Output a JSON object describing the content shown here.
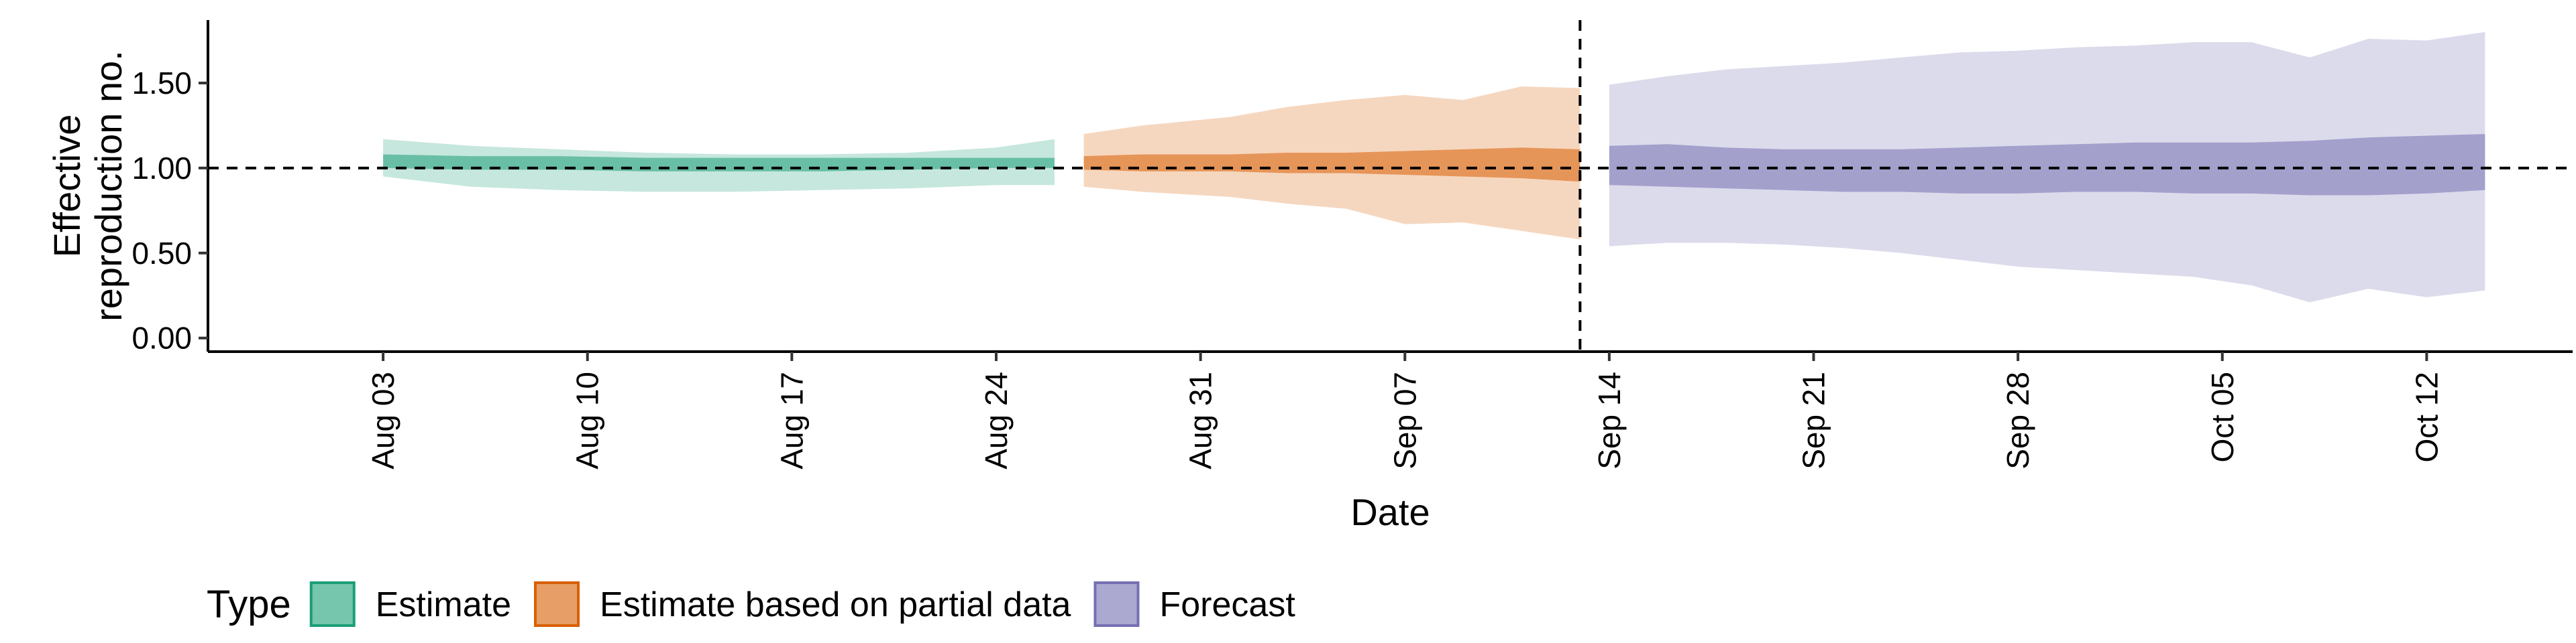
{
  "chart_data": {
    "type": "area",
    "xlabel": "Date",
    "ylabel_lines": [
      "Effective",
      "reproduction no."
    ],
    "y_ticks": [
      {
        "value": 0.0,
        "label": "0.00"
      },
      {
        "value": 0.5,
        "label": "0.50"
      },
      {
        "value": 1.0,
        "label": "1.00"
      },
      {
        "value": 1.5,
        "label": "1.50"
      }
    ],
    "ylim": [
      -0.08,
      1.87
    ],
    "xlim": [
      "2020-07-28",
      "2020-10-17"
    ],
    "x_ticks": [
      {
        "date": "2020-08-03",
        "label": "Aug 03"
      },
      {
        "date": "2020-08-10",
        "label": "Aug 10"
      },
      {
        "date": "2020-08-17",
        "label": "Aug 17"
      },
      {
        "date": "2020-08-24",
        "label": "Aug 24"
      },
      {
        "date": "2020-08-31",
        "label": "Aug 31"
      },
      {
        "date": "2020-09-07",
        "label": "Sep 07"
      },
      {
        "date": "2020-09-14",
        "label": "Sep 14"
      },
      {
        "date": "2020-09-21",
        "label": "Sep 21"
      },
      {
        "date": "2020-09-28",
        "label": "Sep 28"
      },
      {
        "date": "2020-10-05",
        "label": "Oct 05"
      },
      {
        "date": "2020-10-12",
        "label": "Oct 12"
      }
    ],
    "reference_line_y": 1.0,
    "forecast_date": "2020-09-13",
    "legend": {
      "title": "Type",
      "position": "bottom-left",
      "items": [
        {
          "series": "Estimate",
          "label": "Estimate"
        },
        {
          "series": "Estimate based on partial data",
          "label": "Estimate based on partial data"
        },
        {
          "series": "Forecast",
          "label": "Forecast"
        }
      ]
    },
    "series": [
      {
        "name": "Estimate",
        "color": "#1b9e77",
        "x": [
          "2020-08-03",
          "2020-08-06",
          "2020-08-09",
          "2020-08-12",
          "2020-08-15",
          "2020-08-18",
          "2020-08-21",
          "2020-08-24",
          "2020-08-26"
        ],
        "outer_upper": [
          1.17,
          1.13,
          1.11,
          1.09,
          1.08,
          1.08,
          1.09,
          1.12,
          1.17
        ],
        "outer_lower": [
          0.95,
          0.89,
          0.87,
          0.86,
          0.86,
          0.87,
          0.88,
          0.9,
          0.9
        ],
        "inner_upper": [
          1.08,
          1.07,
          1.07,
          1.06,
          1.06,
          1.06,
          1.06,
          1.06,
          1.06
        ],
        "inner_lower": [
          1.0,
          0.99,
          0.99,
          0.98,
          0.98,
          0.98,
          0.99,
          1.0,
          1.0
        ]
      },
      {
        "name": "Estimate based on partial data",
        "color": "#d95f02",
        "x": [
          "2020-08-27",
          "2020-08-29",
          "2020-09-01",
          "2020-09-03",
          "2020-09-05",
          "2020-09-07",
          "2020-09-09",
          "2020-09-11",
          "2020-09-13"
        ],
        "outer_upper": [
          1.2,
          1.25,
          1.3,
          1.36,
          1.4,
          1.43,
          1.4,
          1.48,
          1.47
        ],
        "outer_lower": [
          0.89,
          0.86,
          0.83,
          0.79,
          0.76,
          0.67,
          0.68,
          0.63,
          0.58
        ],
        "inner_upper": [
          1.07,
          1.08,
          1.08,
          1.09,
          1.09,
          1.1,
          1.11,
          1.12,
          1.11
        ],
        "inner_lower": [
          0.99,
          0.98,
          0.98,
          0.97,
          0.97,
          0.96,
          0.95,
          0.94,
          0.92
        ]
      },
      {
        "name": "Forecast",
        "color": "#7570b3",
        "x": [
          "2020-09-14",
          "2020-09-16",
          "2020-09-18",
          "2020-09-20",
          "2020-09-22",
          "2020-09-24",
          "2020-09-26",
          "2020-09-28",
          "2020-09-30",
          "2020-10-02",
          "2020-10-04",
          "2020-10-06",
          "2020-10-08",
          "2020-10-10",
          "2020-10-12",
          "2020-10-14"
        ],
        "outer_upper": [
          1.49,
          1.54,
          1.58,
          1.6,
          1.62,
          1.65,
          1.68,
          1.69,
          1.71,
          1.72,
          1.74,
          1.74,
          1.65,
          1.76,
          1.75,
          1.8
        ],
        "outer_lower": [
          0.54,
          0.56,
          0.56,
          0.55,
          0.53,
          0.5,
          0.46,
          0.42,
          0.4,
          0.38,
          0.36,
          0.31,
          0.21,
          0.29,
          0.24,
          0.28
        ],
        "inner_upper": [
          1.13,
          1.14,
          1.12,
          1.11,
          1.11,
          1.11,
          1.12,
          1.13,
          1.14,
          1.15,
          1.15,
          1.15,
          1.16,
          1.18,
          1.19,
          1.2
        ],
        "inner_lower": [
          0.9,
          0.89,
          0.88,
          0.87,
          0.86,
          0.86,
          0.85,
          0.85,
          0.86,
          0.86,
          0.85,
          0.85,
          0.84,
          0.84,
          0.85,
          0.87
        ]
      }
    ]
  }
}
